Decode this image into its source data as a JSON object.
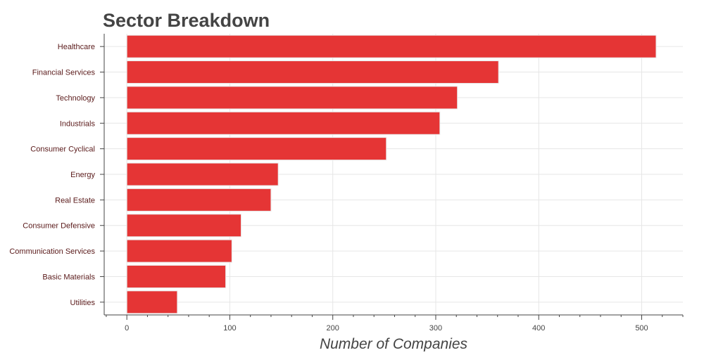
{
  "chart_data": {
    "type": "bar",
    "orientation": "horizontal",
    "title": "Sector Breakdown",
    "xlabel": "Number of Companies",
    "ylabel": "",
    "categories": [
      "Healthcare",
      "Financial Services",
      "Technology",
      "Industrials",
      "Consumer Cyclical",
      "Energy",
      "Real Estate",
      "Consumer Defensive",
      "Communication Services",
      "Basic Materials",
      "Utilities"
    ],
    "values": [
      514,
      361,
      321,
      304,
      252,
      147,
      140,
      111,
      102,
      96,
      49
    ],
    "xlim": [
      -22,
      540
    ],
    "xticks": [
      0,
      100,
      200,
      300,
      400,
      500
    ],
    "grid": true,
    "colors": {
      "bar": "#e53535",
      "bar_edge": "#e8e8e8",
      "grid": "#e6e6e6",
      "axis": "#444444",
      "category_label": "#5a1a1a",
      "title": "#444444",
      "xlabel": "#444444"
    }
  }
}
